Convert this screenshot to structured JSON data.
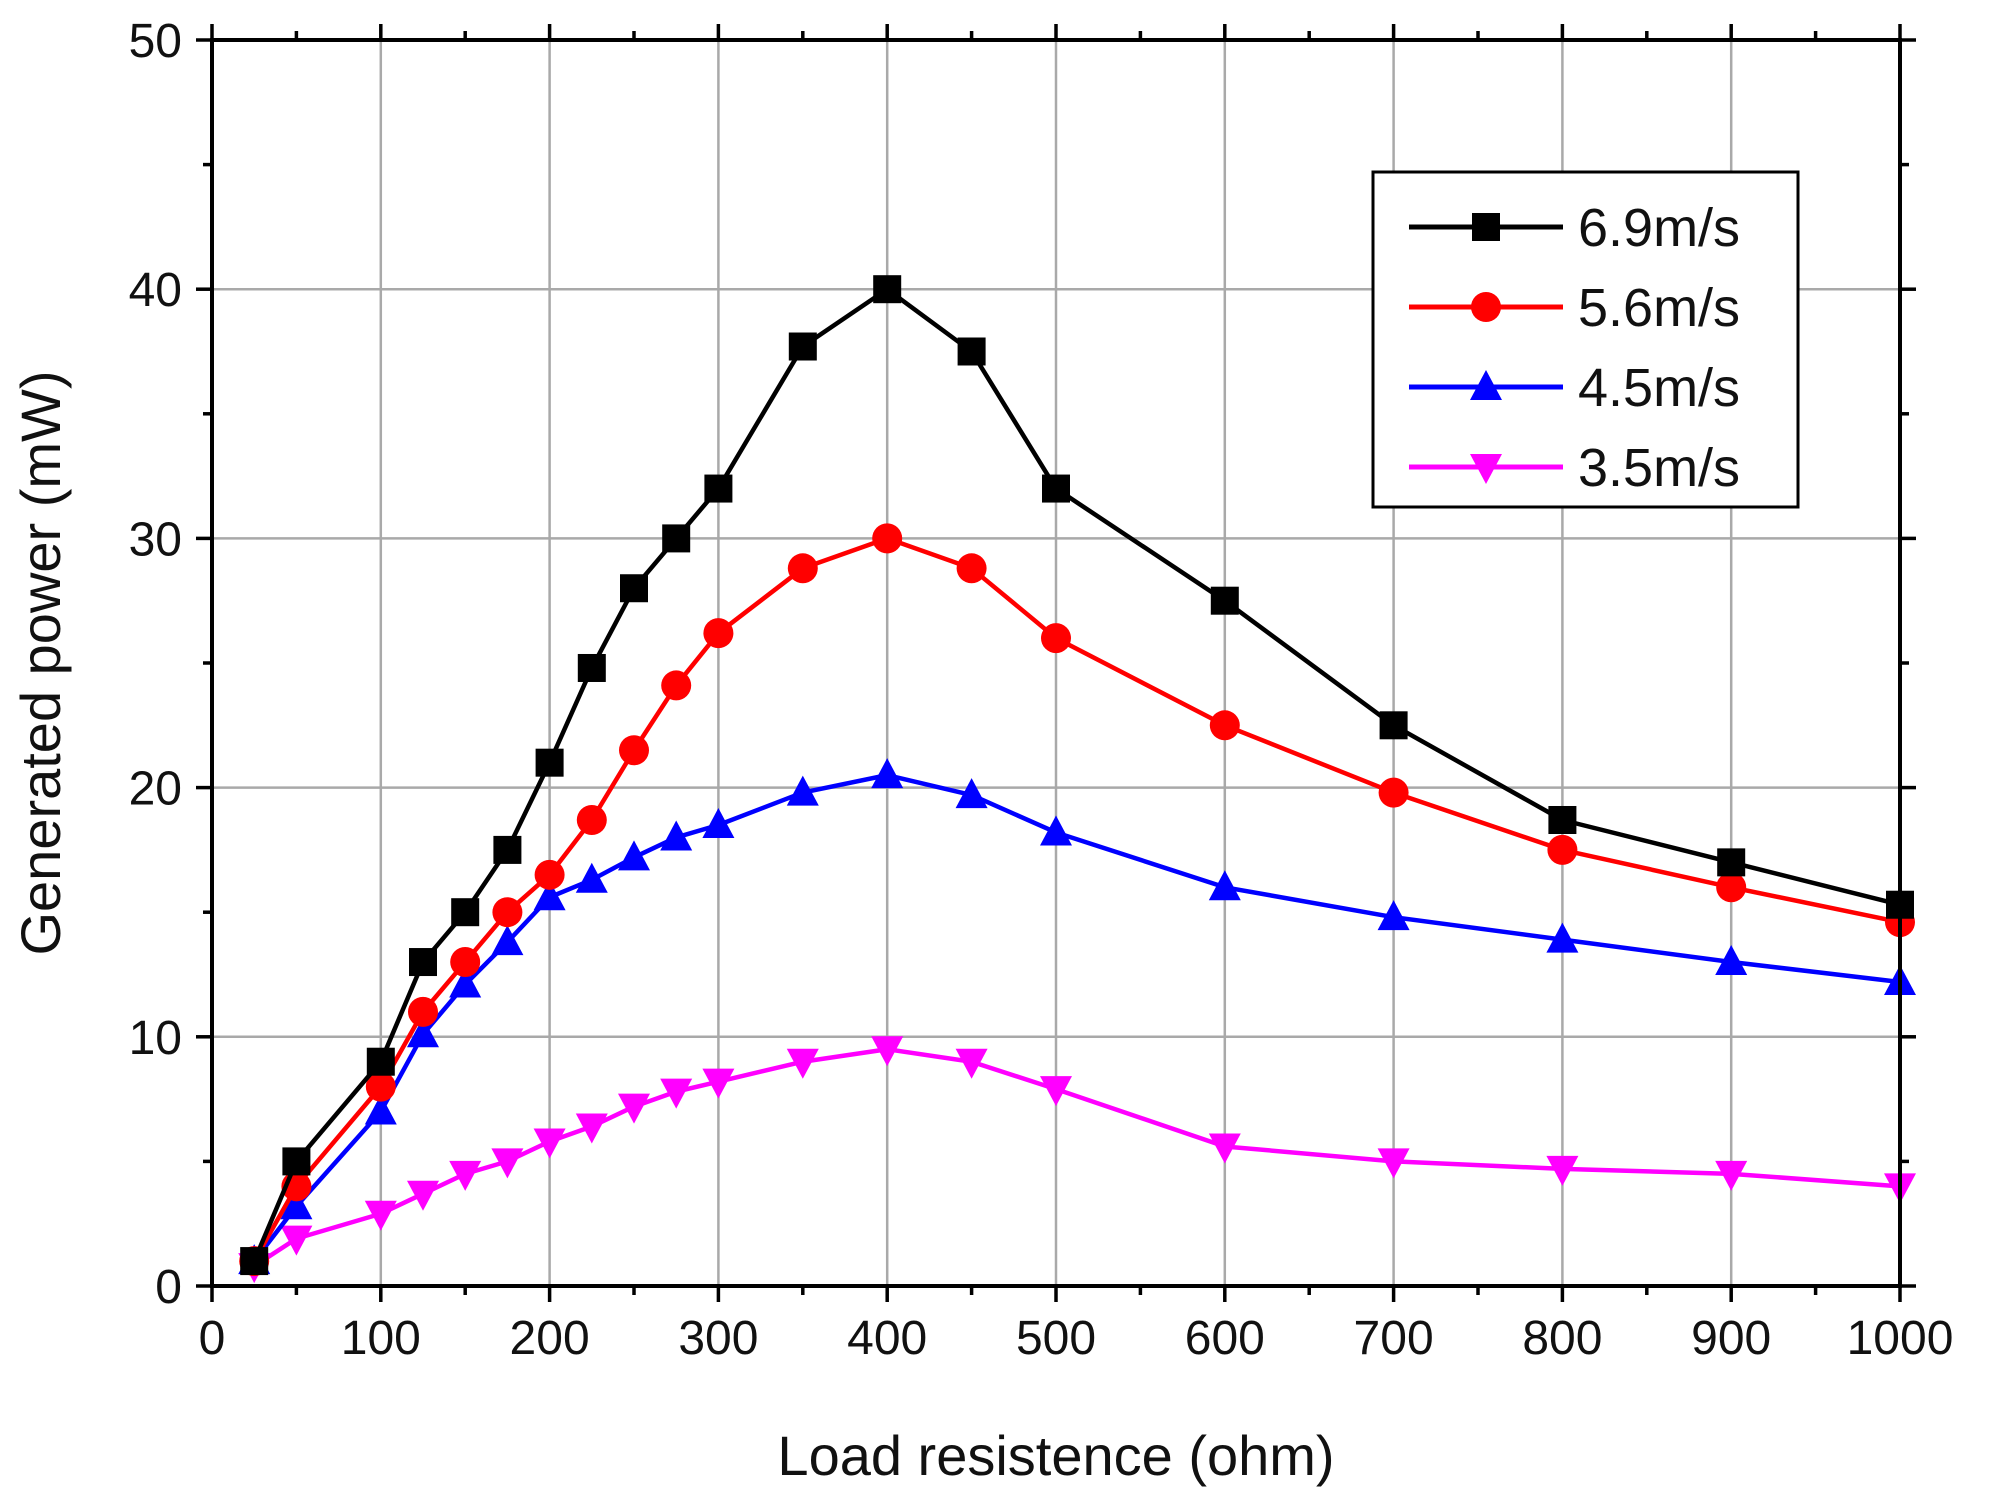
{
  "chart_data": {
    "type": "line",
    "title": "",
    "xlabel": "Load resistence (ohm)",
    "ylabel": "Generated power (mW)",
    "xlim": [
      0,
      1000
    ],
    "ylim": [
      0,
      50
    ],
    "x_ticks": [
      0,
      100,
      200,
      300,
      400,
      500,
      600,
      700,
      800,
      900,
      1000
    ],
    "x_tick_labels": [
      "0",
      "100",
      "200",
      "300",
      "400",
      "500",
      "600",
      "700",
      "800",
      "900",
      "1000"
    ],
    "y_ticks": [
      0,
      10,
      20,
      30,
      40,
      50
    ],
    "y_tick_labels": [
      "0",
      "10",
      "20",
      "30",
      "40",
      "50"
    ],
    "grid": true,
    "legend_position": "top-right",
    "x": [
      25,
      50,
      100,
      125,
      150,
      175,
      200,
      225,
      250,
      275,
      300,
      350,
      400,
      450,
      500,
      600,
      700,
      800,
      900,
      1000
    ],
    "series": [
      {
        "name": "6.9m/s",
        "color": "#000000",
        "marker": "square",
        "values": [
          1.0,
          5.0,
          9.0,
          13.0,
          15.0,
          17.5,
          21.0,
          24.8,
          28.0,
          30.0,
          32.0,
          37.7,
          40.0,
          37.5,
          32.0,
          27.5,
          22.5,
          18.7,
          17.0,
          15.3
        ]
      },
      {
        "name": "5.6m/s",
        "color": "#ff0000",
        "marker": "circle",
        "values": [
          1.0,
          4.0,
          8.0,
          11.0,
          13.0,
          15.0,
          16.5,
          18.7,
          21.5,
          24.1,
          26.2,
          28.8,
          30.0,
          28.8,
          26.0,
          22.5,
          19.8,
          17.5,
          16.0,
          14.6
        ]
      },
      {
        "name": "4.5m/s",
        "color": "#0000ff",
        "marker": "triangle-up",
        "values": [
          1.0,
          3.2,
          7.0,
          10.1,
          12.1,
          13.8,
          15.6,
          16.3,
          17.2,
          18.0,
          18.5,
          19.8,
          20.5,
          19.7,
          18.2,
          16.0,
          14.8,
          13.9,
          13.0,
          12.2
        ]
      },
      {
        "name": "3.5m/s",
        "color": "#ff00ff",
        "marker": "triangle-down",
        "values": [
          0.8,
          1.9,
          2.9,
          3.7,
          4.5,
          5.0,
          5.8,
          6.4,
          7.2,
          7.8,
          8.2,
          9.0,
          9.5,
          9.0,
          7.9,
          5.6,
          5.0,
          4.7,
          4.5,
          4.0
        ]
      }
    ]
  }
}
